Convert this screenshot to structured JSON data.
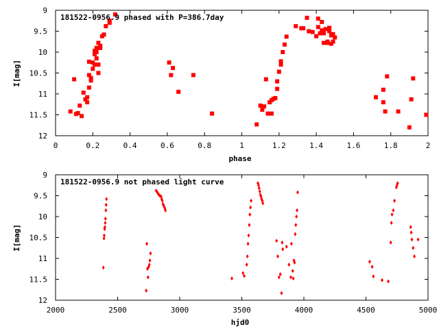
{
  "colors": {
    "points": "#ff0000",
    "axes": "#000000",
    "background": "#ffffff"
  },
  "chart_data": [
    {
      "type": "scatter",
      "title": "181522-0956.9 phased with P=386.7day",
      "xlabel": "phase",
      "ylabel": "I[mag]",
      "xlim": [
        0,
        2
      ],
      "ylim": [
        12,
        9
      ],
      "y_inverted": true,
      "marker": "square",
      "x_ticks": [
        0,
        0.2,
        0.4,
        0.6,
        0.8,
        1,
        1.2,
        1.4,
        1.6,
        1.8,
        2
      ],
      "x_tick_labels": [
        "0",
        "0.2",
        "0.4",
        "0.6",
        "0.8",
        "1",
        "1.2",
        "1.4",
        "1.6",
        "1.8",
        "2"
      ],
      "y_ticks": [
        9,
        9.5,
        10,
        10.5,
        11,
        11.5,
        12
      ],
      "y_tick_labels": [
        "9",
        "9.5",
        "10",
        "10.5",
        "11",
        "11.5",
        "12"
      ],
      "series": [
        {
          "points": [
            [
              0.08,
              11.42
            ],
            [
              0.1,
              10.65
            ],
            [
              0.11,
              11.48
            ],
            [
              0.12,
              11.46
            ],
            [
              0.13,
              11.28
            ],
            [
              0.14,
              11.53
            ],
            [
              0.15,
              10.97
            ],
            [
              0.16,
              11.13
            ],
            [
              0.17,
              11.2
            ],
            [
              0.17,
              11.08
            ],
            [
              0.18,
              10.85
            ],
            [
              0.18,
              10.55
            ],
            [
              0.18,
              10.23
            ],
            [
              0.19,
              10.62
            ],
            [
              0.19,
              10.68
            ],
            [
              0.2,
              10.25
            ],
            [
              0.2,
              10.4
            ],
            [
              0.21,
              10.3
            ],
            [
              0.21,
              10.05
            ],
            [
              0.21,
              9.97
            ],
            [
              0.22,
              10.15
            ],
            [
              0.22,
              10.0
            ],
            [
              0.22,
              9.9
            ],
            [
              0.23,
              9.78
            ],
            [
              0.23,
              10.5
            ],
            [
              0.23,
              10.3
            ],
            [
              0.24,
              9.85
            ],
            [
              0.24,
              9.9
            ],
            [
              0.25,
              9.62
            ],
            [
              0.26,
              9.58
            ],
            [
              0.27,
              9.38
            ],
            [
              0.29,
              9.25
            ],
            [
              0.29,
              9.3
            ],
            [
              0.32,
              9.1
            ],
            [
              0.61,
              10.25
            ],
            [
              0.62,
              10.55
            ],
            [
              0.63,
              10.38
            ],
            [
              0.66,
              10.95
            ],
            [
              0.74,
              10.55
            ],
            [
              0.84,
              11.47
            ],
            [
              1.08,
              11.73
            ],
            [
              1.1,
              11.28
            ],
            [
              1.11,
              11.38
            ],
            [
              1.12,
              11.3
            ],
            [
              1.13,
              10.65
            ],
            [
              1.14,
              11.47
            ],
            [
              1.15,
              11.2
            ],
            [
              1.16,
              11.47
            ],
            [
              1.16,
              11.15
            ],
            [
              1.17,
              11.12
            ],
            [
              1.18,
              11.1
            ],
            [
              1.19,
              10.88
            ],
            [
              1.19,
              10.7
            ],
            [
              1.2,
              10.47
            ],
            [
              1.21,
              10.3
            ],
            [
              1.21,
              10.22
            ],
            [
              1.22,
              10.0
            ],
            [
              1.23,
              9.82
            ],
            [
              1.24,
              9.63
            ],
            [
              1.29,
              9.38
            ],
            [
              1.32,
              9.43
            ],
            [
              1.33,
              9.43
            ],
            [
              1.35,
              9.18
            ],
            [
              1.36,
              9.5
            ],
            [
              1.38,
              9.52
            ],
            [
              1.4,
              9.62
            ],
            [
              1.41,
              9.2
            ],
            [
              1.41,
              9.4
            ],
            [
              1.42,
              9.55
            ],
            [
              1.43,
              9.28
            ],
            [
              1.43,
              9.48
            ],
            [
              1.44,
              9.55
            ],
            [
              1.44,
              9.78
            ],
            [
              1.45,
              9.45
            ],
            [
              1.46,
              9.78
            ],
            [
              1.46,
              9.75
            ],
            [
              1.47,
              9.5
            ],
            [
              1.47,
              9.42
            ],
            [
              1.48,
              9.8
            ],
            [
              1.48,
              9.6
            ],
            [
              1.49,
              9.57
            ],
            [
              1.49,
              9.75
            ],
            [
              1.5,
              9.65
            ],
            [
              1.72,
              11.08
            ],
            [
              1.76,
              11.2
            ],
            [
              1.76,
              10.9
            ],
            [
              1.77,
              11.42
            ],
            [
              1.78,
              10.58
            ],
            [
              1.84,
              11.42
            ],
            [
              1.9,
              11.8
            ],
            [
              1.91,
              11.13
            ],
            [
              1.92,
              10.63
            ],
            [
              1.99,
              11.5
            ]
          ]
        }
      ]
    },
    {
      "type": "scatter",
      "title": "181522-0956.9 not phased light curve",
      "xlabel": "hjd0",
      "ylabel": "I[mag]",
      "xlim": [
        2000,
        5000
      ],
      "ylim": [
        12,
        9
      ],
      "y_inverted": true,
      "marker": "diamond",
      "x_ticks": [
        2000,
        2500,
        3000,
        3500,
        4000,
        4500,
        5000
      ],
      "x_tick_labels": [
        "2000",
        "2500",
        "3000",
        "3500",
        "4000",
        "4500",
        "5000"
      ],
      "y_ticks": [
        9,
        9.5,
        10,
        10.5,
        11,
        11.5,
        12
      ],
      "y_tick_labels": [
        "9",
        "9.5",
        "10",
        "10.5",
        "11",
        "11.5",
        "12"
      ],
      "series": [
        {
          "points": [
            [
              2385,
              11.22
            ],
            [
              2390,
              10.52
            ],
            [
              2392,
              10.45
            ],
            [
              2395,
              10.3
            ],
            [
              2397,
              10.25
            ],
            [
              2400,
              10.15
            ],
            [
              2402,
              10.05
            ],
            [
              2405,
              9.85
            ],
            [
              2407,
              9.72
            ],
            [
              2410,
              9.58
            ],
            [
              2730,
              11.77
            ],
            [
              2735,
              10.65
            ],
            [
              2740,
              11.25
            ],
            [
              2745,
              11.45
            ],
            [
              2750,
              11.2
            ],
            [
              2755,
              11.15
            ],
            [
              2760,
              11.05
            ],
            [
              2765,
              10.88
            ],
            [
              2810,
              9.38
            ],
            [
              2820,
              9.42
            ],
            [
              2830,
              9.47
            ],
            [
              2840,
              9.5
            ],
            [
              2850,
              9.52
            ],
            [
              2855,
              9.58
            ],
            [
              2860,
              9.62
            ],
            [
              2865,
              9.7
            ],
            [
              2870,
              9.73
            ],
            [
              2875,
              9.77
            ],
            [
              2880,
              9.8
            ],
            [
              2885,
              9.85
            ],
            [
              3420,
              11.48
            ],
            [
              3510,
              11.35
            ],
            [
              3520,
              11.42
            ],
            [
              3540,
              11.15
            ],
            [
              3545,
              10.95
            ],
            [
              3550,
              10.65
            ],
            [
              3555,
              10.45
            ],
            [
              3560,
              10.2
            ],
            [
              3565,
              9.95
            ],
            [
              3570,
              9.78
            ],
            [
              3575,
              9.62
            ],
            [
              3630,
              9.2
            ],
            [
              3635,
              9.25
            ],
            [
              3640,
              9.32
            ],
            [
              3645,
              9.4
            ],
            [
              3650,
              9.48
            ],
            [
              3655,
              9.52
            ],
            [
              3660,
              9.58
            ],
            [
              3665,
              9.62
            ],
            [
              3670,
              9.68
            ],
            [
              3780,
              10.58
            ],
            [
              3790,
              10.95
            ],
            [
              3800,
              11.45
            ],
            [
              3810,
              11.38
            ],
            [
              3820,
              11.83
            ],
            [
              3825,
              10.62
            ],
            [
              3830,
              10.78
            ],
            [
              3860,
              10.72
            ],
            [
              3880,
              11.15
            ],
            [
              3895,
              11.45
            ],
            [
              3900,
              10.65
            ],
            [
              3910,
              11.3
            ],
            [
              3915,
              11.48
            ],
            [
              3920,
              11.05
            ],
            [
              3925,
              11.1
            ],
            [
              3930,
              10.42
            ],
            [
              3935,
              10.2
            ],
            [
              3940,
              10.0
            ],
            [
              3945,
              9.85
            ],
            [
              3950,
              9.42
            ],
            [
              4530,
              11.08
            ],
            [
              4550,
              11.2
            ],
            [
              4560,
              11.43
            ],
            [
              4630,
              11.52
            ],
            [
              4680,
              11.55
            ],
            [
              4700,
              10.62
            ],
            [
              4705,
              10.15
            ],
            [
              4710,
              9.95
            ],
            [
              4720,
              9.85
            ],
            [
              4730,
              9.62
            ],
            [
              4745,
              9.3
            ],
            [
              4750,
              9.25
            ],
            [
              4755,
              9.2
            ],
            [
              4860,
              10.25
            ],
            [
              4865,
              10.38
            ],
            [
              4870,
              10.55
            ],
            [
              4880,
              10.75
            ],
            [
              4890,
              10.95
            ],
            [
              4920,
              10.55
            ]
          ]
        }
      ]
    }
  ]
}
